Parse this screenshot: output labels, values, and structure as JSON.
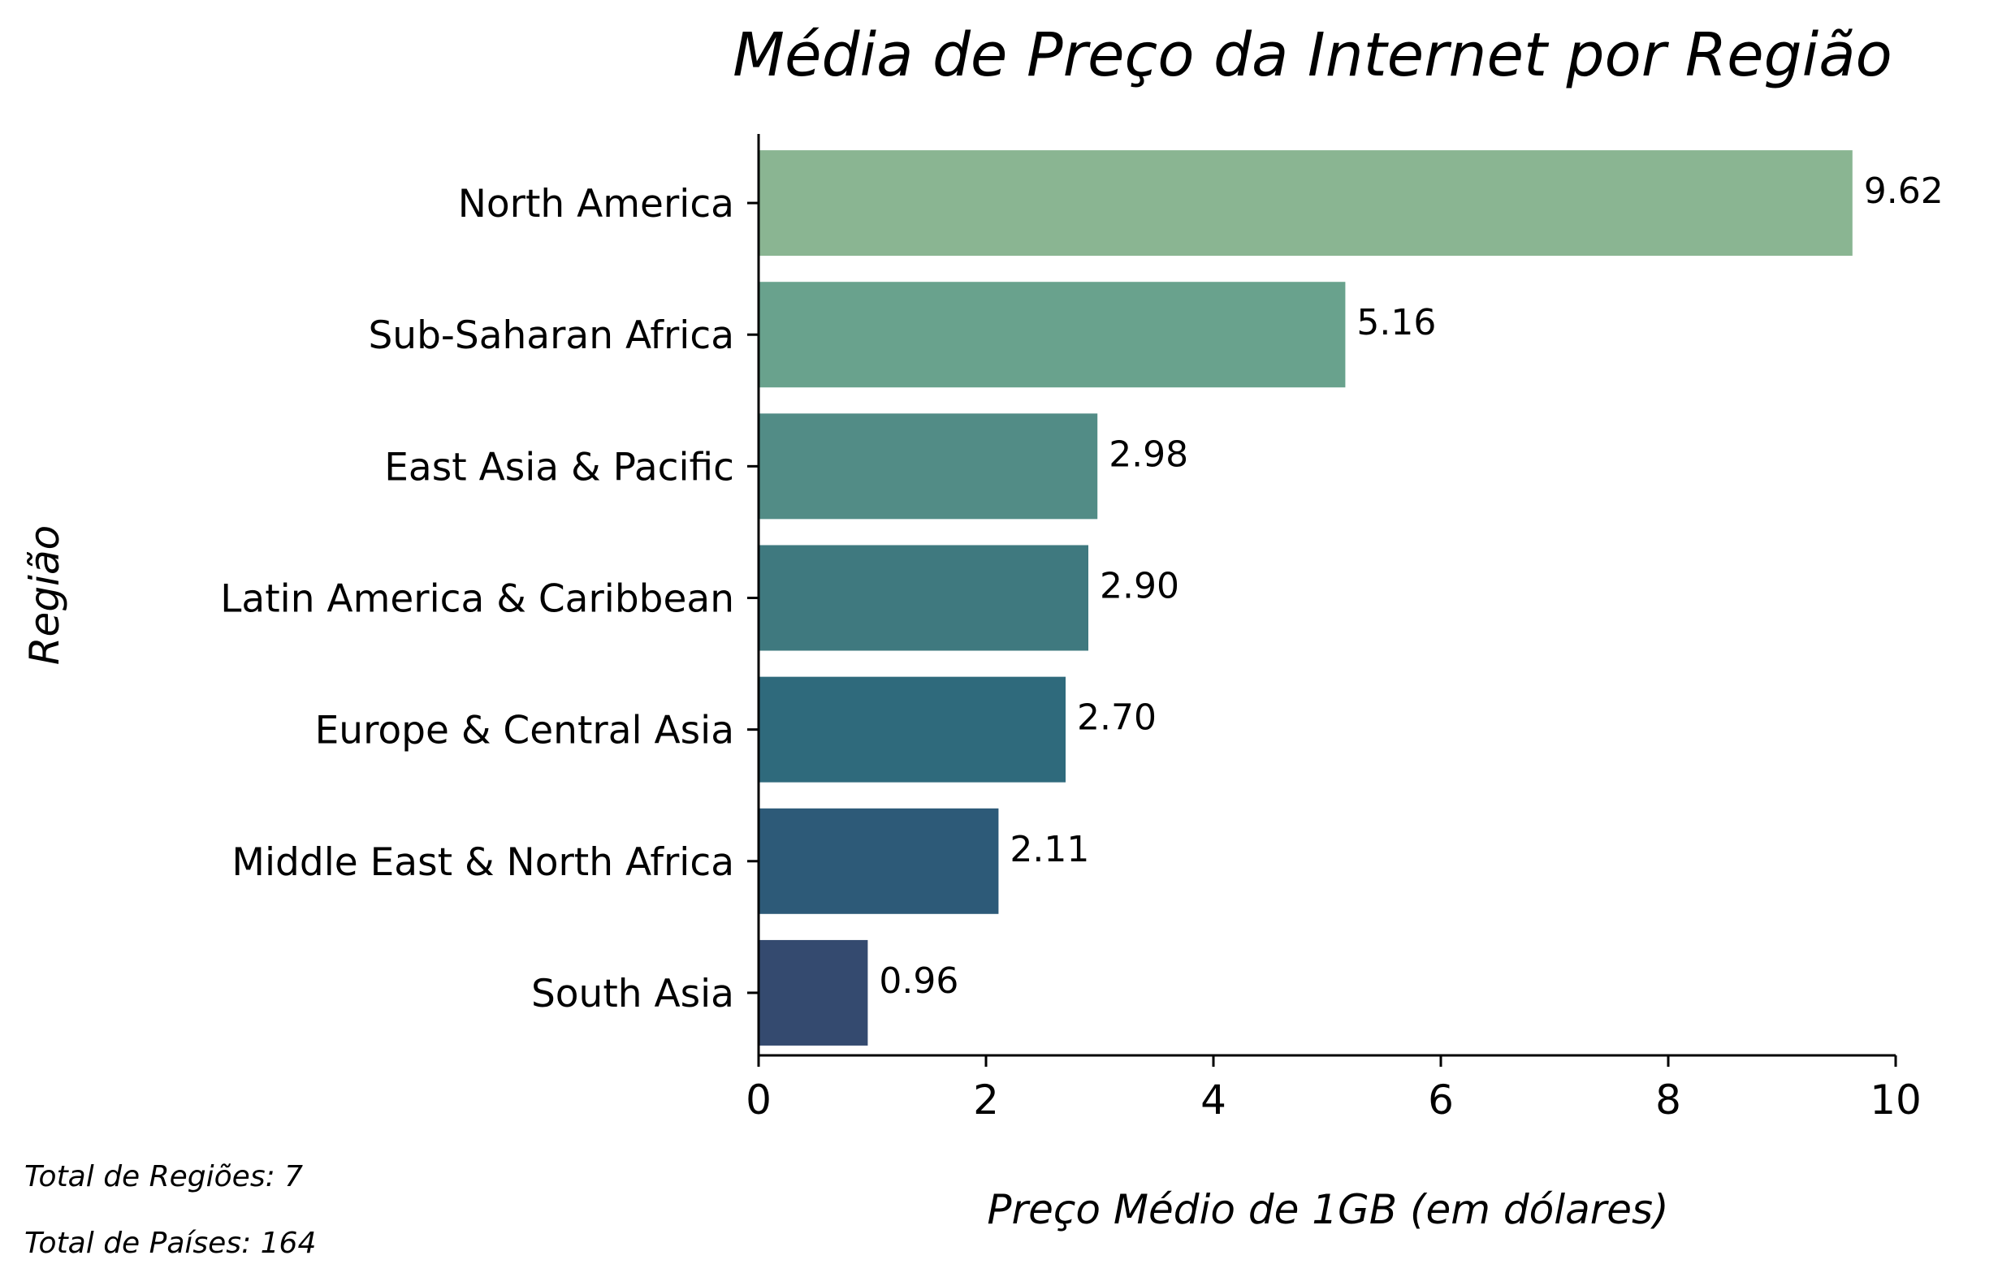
{
  "chart_data": {
    "type": "bar",
    "orientation": "horizontal",
    "title": "Média de Preço da Internet por Região",
    "xlabel": "Preço Médio de 1GB (em dólares)",
    "ylabel": "Região",
    "xlim": [
      0,
      10
    ],
    "xticks": [
      0,
      2,
      4,
      6,
      8,
      10
    ],
    "grid": false,
    "categories": [
      "North America",
      "Sub-Saharan Africa",
      "East Asia & Pacific",
      "Latin America & Caribbean",
      "Europe & Central Asia",
      "Middle East & North Africa",
      "South Asia"
    ],
    "values": [
      9.62,
      5.16,
      2.98,
      2.9,
      2.7,
      2.11,
      0.96
    ],
    "value_labels": [
      "9.62",
      "5.16",
      "2.98",
      "2.90",
      "2.70",
      "2.11",
      "0.96"
    ],
    "colors": [
      "#8ab592",
      "#69a28d",
      "#528c86",
      "#3f797f",
      "#2f6a7c",
      "#2d5a78",
      "#344a6f"
    ]
  },
  "footnotes": {
    "total_regions": "Total de Regiões: 7",
    "total_countries": "Total de Países: 164"
  }
}
